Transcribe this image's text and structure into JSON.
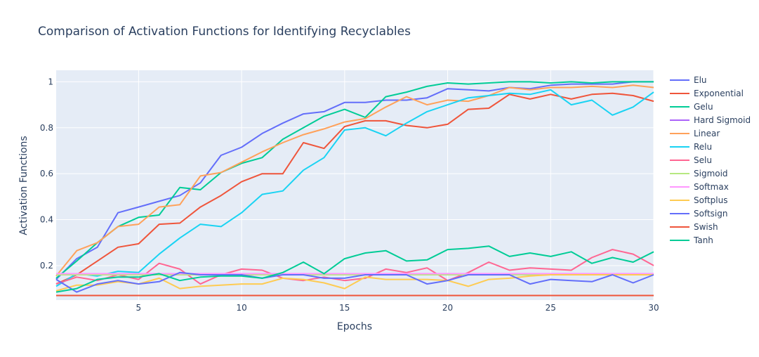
{
  "chart_data": {
    "type": "line",
    "title": "Comparison of Activation Functions for Identifying Recyclables",
    "xlabel": "Epochs",
    "ylabel": "Activation Functions",
    "xlim": [
      1,
      30
    ],
    "ylim": [
      0.05,
      1.05
    ],
    "xticks": [
      5,
      10,
      15,
      20,
      25,
      30
    ],
    "yticks": [
      0.2,
      0.4,
      0.6,
      0.8,
      1
    ],
    "grid": true,
    "legend_position": "right",
    "x": [
      1,
      2,
      3,
      4,
      5,
      6,
      7,
      8,
      9,
      10,
      11,
      12,
      13,
      14,
      15,
      16,
      17,
      18,
      19,
      20,
      21,
      22,
      23,
      24,
      25,
      26,
      27,
      28,
      29,
      30
    ],
    "series": [
      {
        "name": "Elu",
        "color": "#636efa",
        "values": [
          0.14,
          0.23,
          0.28,
          0.43,
          0.455,
          0.48,
          0.505,
          0.56,
          0.68,
          0.715,
          0.775,
          0.82,
          0.86,
          0.87,
          0.91,
          0.91,
          0.92,
          0.92,
          0.93,
          0.97,
          0.965,
          0.96,
          0.975,
          0.97,
          0.985,
          0.99,
          0.99,
          0.99,
          1.0,
          1.0
        ]
      },
      {
        "name": "Exponential",
        "color": "#EF553B",
        "values": [
          0.12,
          0.16,
          0.22,
          0.28,
          0.295,
          0.38,
          0.385,
          0.455,
          0.505,
          0.565,
          0.6,
          0.6,
          0.735,
          0.71,
          0.805,
          0.83,
          0.83,
          0.81,
          0.8,
          0.815,
          0.88,
          0.885,
          0.945,
          0.925,
          0.945,
          0.925,
          0.945,
          0.95,
          0.94,
          0.915
        ]
      },
      {
        "name": "Gelu",
        "color": "#00cc96",
        "values": [
          0.145,
          0.22,
          0.3,
          0.37,
          0.41,
          0.42,
          0.54,
          0.53,
          0.605,
          0.645,
          0.67,
          0.75,
          0.8,
          0.85,
          0.88,
          0.845,
          0.935,
          0.955,
          0.98,
          0.995,
          0.99,
          0.995,
          1.0,
          1.0,
          0.995,
          1.0,
          0.995,
          1.0,
          1.0,
          1.0
        ]
      },
      {
        "name": "Hard Sigmoid",
        "color": "#ab63fa",
        "values": [
          0.16,
          0.16,
          0.16,
          0.16,
          0.16,
          0.16,
          0.16,
          0.16,
          0.16,
          0.16,
          0.16,
          0.16,
          0.16,
          0.16,
          0.16,
          0.16,
          0.16,
          0.16,
          0.16,
          0.16,
          0.16,
          0.16,
          0.16,
          0.16,
          0.16,
          0.16,
          0.16,
          0.16,
          0.16,
          0.16
        ]
      },
      {
        "name": "Linear",
        "color": "#FFA15A",
        "values": [
          0.155,
          0.265,
          0.3,
          0.37,
          0.38,
          0.455,
          0.465,
          0.59,
          0.605,
          0.65,
          0.695,
          0.735,
          0.77,
          0.795,
          0.825,
          0.84,
          0.89,
          0.935,
          0.9,
          0.92,
          0.915,
          0.94,
          0.975,
          0.965,
          0.975,
          0.975,
          0.98,
          0.975,
          0.985,
          0.975
        ]
      },
      {
        "name": "Relu",
        "color": "#19d3f3",
        "values": [
          0.11,
          0.165,
          0.155,
          0.175,
          0.17,
          0.25,
          0.32,
          0.38,
          0.37,
          0.43,
          0.51,
          0.525,
          0.615,
          0.67,
          0.79,
          0.8,
          0.765,
          0.82,
          0.87,
          0.9,
          0.93,
          0.94,
          0.95,
          0.945,
          0.965,
          0.9,
          0.92,
          0.855,
          0.89,
          0.955
        ]
      },
      {
        "name": "Selu",
        "color": "#FF6692",
        "values": [
          0.12,
          0.15,
          0.135,
          0.16,
          0.14,
          0.21,
          0.185,
          0.12,
          0.16,
          0.185,
          0.18,
          0.145,
          0.135,
          0.15,
          0.135,
          0.145,
          0.185,
          0.17,
          0.19,
          0.135,
          0.17,
          0.215,
          0.18,
          0.19,
          0.185,
          0.18,
          0.235,
          0.27,
          0.25,
          0.2
        ]
      },
      {
        "name": "Sigmoid",
        "color": "#B6E880",
        "values": [
          0.16,
          0.16,
          0.16,
          0.16,
          0.16,
          0.16,
          0.16,
          0.16,
          0.16,
          0.16,
          0.16,
          0.16,
          0.16,
          0.16,
          0.16,
          0.16,
          0.16,
          0.16,
          0.16,
          0.16,
          0.16,
          0.16,
          0.16,
          0.16,
          0.16,
          0.16,
          0.16,
          0.16,
          0.16,
          0.16
        ]
      },
      {
        "name": "Softmax",
        "color": "#FF97FF",
        "values": [
          0.165,
          0.165,
          0.165,
          0.165,
          0.165,
          0.165,
          0.165,
          0.165,
          0.165,
          0.165,
          0.165,
          0.165,
          0.165,
          0.165,
          0.165,
          0.165,
          0.165,
          0.165,
          0.165,
          0.165,
          0.165,
          0.165,
          0.165,
          0.165,
          0.165,
          0.165,
          0.165,
          0.165,
          0.165,
          0.165
        ]
      },
      {
        "name": "Softplus",
        "color": "#FECB52",
        "values": [
          0.09,
          0.115,
          0.115,
          0.13,
          0.12,
          0.145,
          0.1,
          0.11,
          0.115,
          0.12,
          0.12,
          0.145,
          0.14,
          0.125,
          0.1,
          0.15,
          0.14,
          0.14,
          0.14,
          0.135,
          0.11,
          0.14,
          0.145,
          0.155,
          0.16,
          0.16,
          0.16,
          0.16,
          0.16,
          0.16
        ]
      },
      {
        "name": "Softsign",
        "color": "#636efa",
        "values": [
          0.14,
          0.085,
          0.12,
          0.135,
          0.12,
          0.13,
          0.17,
          0.16,
          0.16,
          0.16,
          0.145,
          0.16,
          0.16,
          0.145,
          0.145,
          0.16,
          0.16,
          0.16,
          0.12,
          0.135,
          0.16,
          0.16,
          0.16,
          0.12,
          0.14,
          0.135,
          0.13,
          0.16,
          0.125,
          0.16
        ]
      },
      {
        "name": "Swish",
        "color": "#EF553B",
        "values": [
          0.07,
          0.07,
          0.07,
          0.07,
          0.07,
          0.07,
          0.07,
          0.07,
          0.07,
          0.07,
          0.07,
          0.07,
          0.07,
          0.07,
          0.07,
          0.07,
          0.07,
          0.07,
          0.07,
          0.07,
          0.07,
          0.07,
          0.07,
          0.07,
          0.07,
          0.07,
          0.07,
          0.07,
          0.07,
          0.07
        ]
      },
      {
        "name": "Tanh",
        "color": "#00cc96",
        "values": [
          0.085,
          0.1,
          0.14,
          0.15,
          0.15,
          0.165,
          0.135,
          0.15,
          0.155,
          0.155,
          0.145,
          0.17,
          0.215,
          0.165,
          0.23,
          0.255,
          0.265,
          0.22,
          0.225,
          0.27,
          0.275,
          0.285,
          0.24,
          0.255,
          0.24,
          0.26,
          0.21,
          0.235,
          0.215,
          0.26
        ]
      }
    ]
  }
}
